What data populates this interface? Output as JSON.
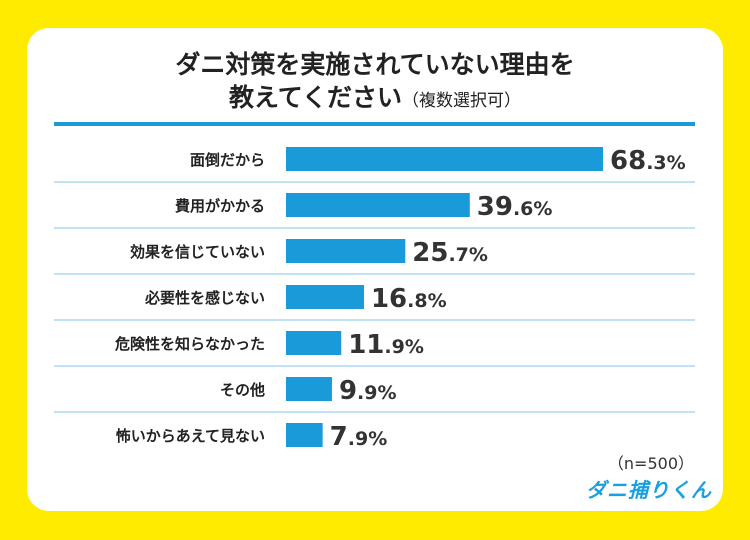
{
  "chart_data": {
    "type": "bar",
    "orientation": "horizontal",
    "title_line1": "ダニ対策を実施されていない理由を",
    "title_line2": "教えてください",
    "title_note": "（複数選択可）",
    "categories": [
      "面倒だから",
      "費用がかかる",
      "効果を信じていない",
      "必要性を感じない",
      "危険性を知らなかった",
      "その他",
      "怖いからあえて見ない"
    ],
    "values": [
      68.3,
      39.6,
      25.7,
      16.8,
      11.9,
      9.9,
      7.9
    ],
    "unit": "%",
    "sample_note": "（n=500）",
    "bar_color": "#1a9ad9",
    "separator_color": "#a8d8f0",
    "grid": false
  },
  "logo": "ダニ捕りくん",
  "colors": {
    "background": "#FFEB00",
    "accent": "#1a9ad9"
  }
}
